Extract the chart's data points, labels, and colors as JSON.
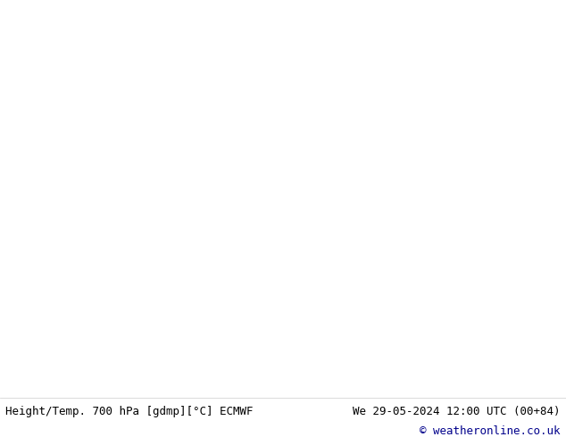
{
  "title_left": "Height/Temp. 700 hPa [gdmp][°C] ECMWF",
  "title_right": "We 29-05-2024 12:00 UTC (00+84)",
  "copyright": "© weatheronline.co.uk",
  "fig_width": 6.34,
  "fig_height": 4.9,
  "dpi": 100,
  "background_color": "#ffffff",
  "map_background": "#d0d0d0",
  "land_color": "#e8e8e8",
  "green_fill": "#c8e6c0",
  "bottom_label_color": "#000000",
  "title_font_size": 9,
  "copyright_color": "#00008b",
  "border_color": "#000000"
}
